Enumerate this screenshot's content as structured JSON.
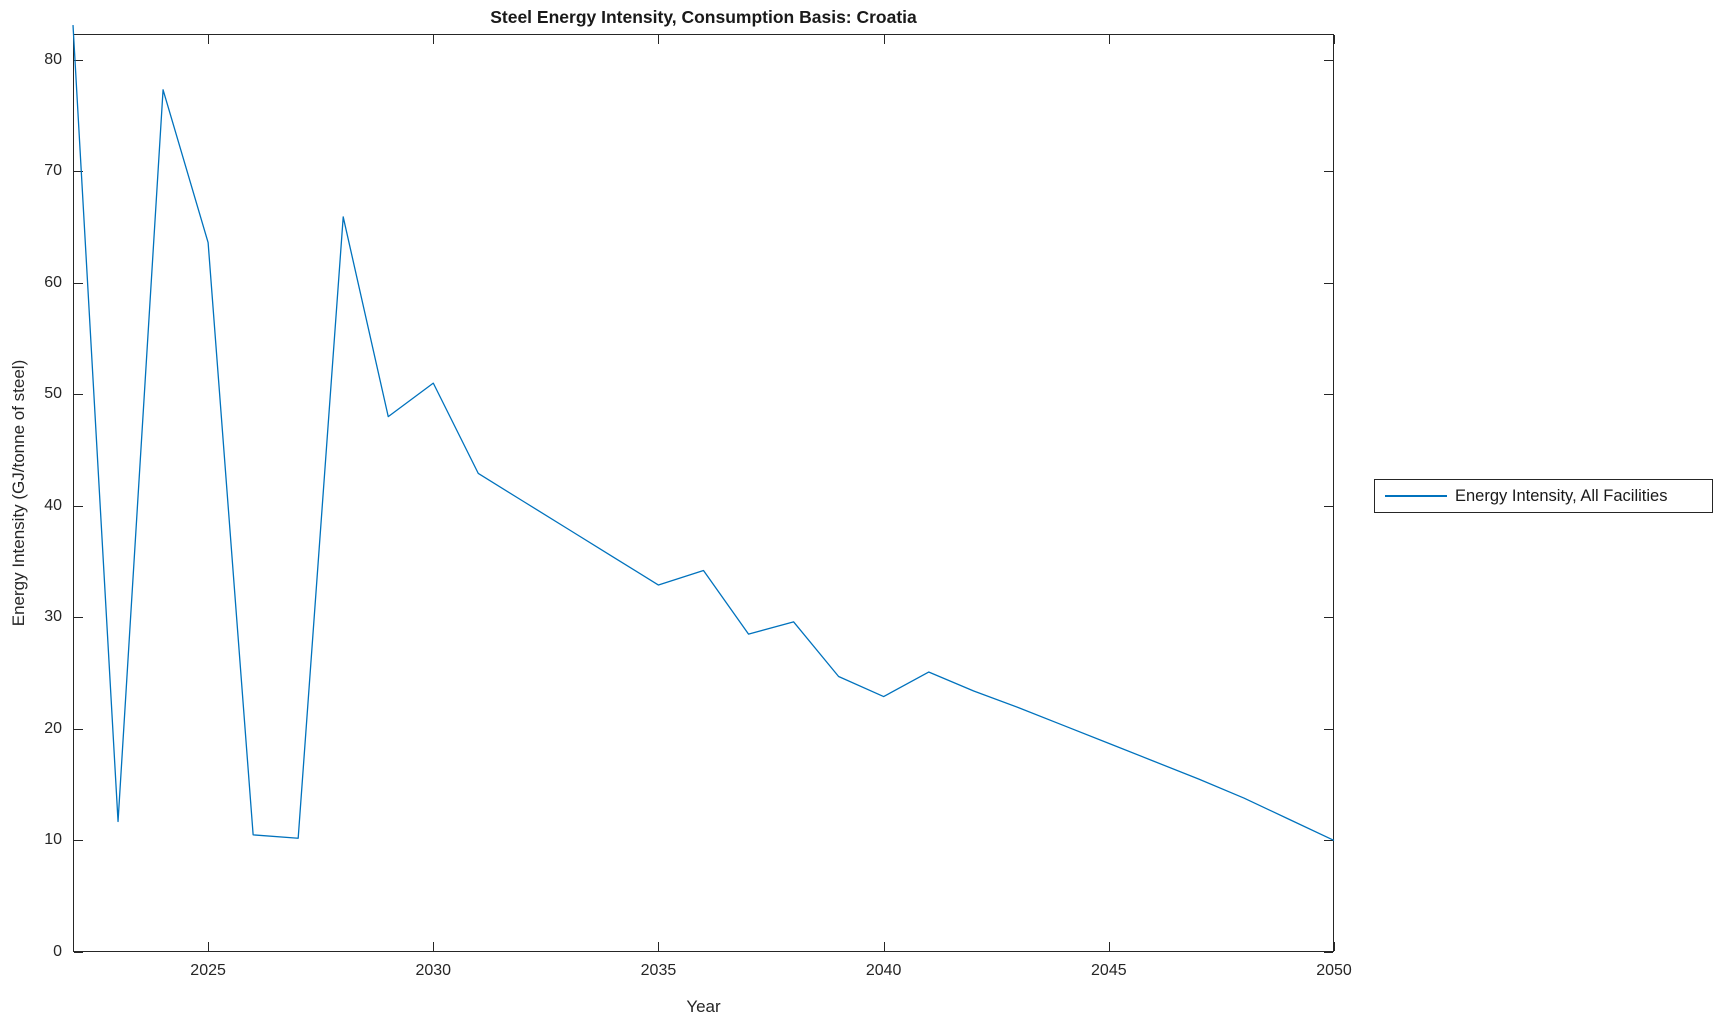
{
  "page": {
    "background": "#ffffff",
    "axis_color": "#262626",
    "text_color": "#1a1a1a"
  },
  "chart_data": {
    "type": "line",
    "title": "Steel Energy Intensity, Consumption Basis: Croatia",
    "xlabel": "Year",
    "ylabel": "Energy Intensity (GJ/tonne of steel)",
    "xlim": [
      2022,
      2050
    ],
    "ylim": [
      0,
      82.3
    ],
    "x_ticks": [
      2025,
      2030,
      2035,
      2040,
      2045,
      2050
    ],
    "y_ticks": [
      0,
      10,
      20,
      30,
      40,
      50,
      60,
      70,
      80
    ],
    "grid": false,
    "box": true,
    "legend_position": "outside-right",
    "x": [
      2022,
      2023,
      2024,
      2025,
      2026,
      2027,
      2028,
      2029,
      2030,
      2031,
      2032,
      2033,
      2034,
      2035,
      2036,
      2037,
      2038,
      2039,
      2040,
      2041,
      2042,
      2043,
      2044,
      2045,
      2046,
      2047,
      2048,
      2049,
      2050
    ],
    "series": [
      {
        "name": "Energy Intensity, All Facilities",
        "color": "#0072BD",
        "values": [
          83.1,
          11.7,
          77.3,
          63.6,
          10.5,
          10.2,
          65.9,
          48.0,
          51.0,
          42.9,
          40.4,
          37.9,
          35.4,
          32.9,
          34.2,
          28.5,
          29.6,
          24.7,
          22.9,
          25.1,
          23.4,
          21.9,
          20.3,
          18.7,
          17.1,
          15.5,
          13.8,
          11.9,
          10.0
        ]
      }
    ]
  },
  "legend": {
    "items": [
      {
        "label": "Energy Intensity, All Facilities",
        "color": "#0072BD"
      }
    ]
  }
}
